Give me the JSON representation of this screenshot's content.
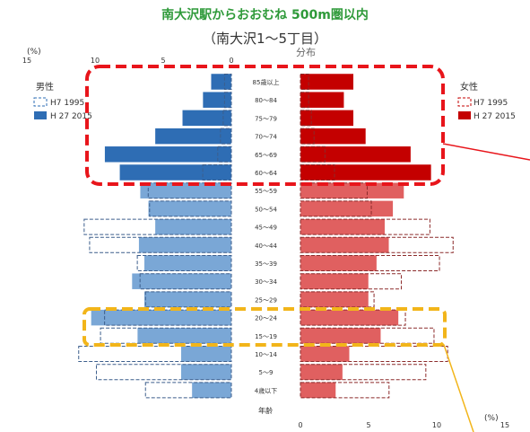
{
  "title": "南大沢駅からおおむね 500m圏以内",
  "subtitle": "（南大沢1～5丁目）",
  "subnote": "分布",
  "axis": {
    "unit_left": "(%)",
    "unit_right": "(%)",
    "ticks_left": [
      "15",
      "10",
      "5",
      "0"
    ],
    "ticks_right": [
      "0",
      "5",
      "10",
      "15"
    ],
    "age_axis_label": "年齢"
  },
  "legend": {
    "male_title": "男性",
    "male_1995": "H7 1995",
    "male_2015": "H 27 2015",
    "female_title": "女性",
    "female_1995": "H7 1995",
    "female_2015": "H 27 2015"
  },
  "colors": {
    "male_dark": "#2e6db4",
    "male_light": "#7aa7d6",
    "female_dark": "#c40000",
    "female_light": "#e06060",
    "highlight_red": "#e8151b",
    "highlight_yellow": "#f2b51a",
    "title_green": "#2f9a3a"
  },
  "chart_data": {
    "type": "bar",
    "orientation": "horizontal",
    "layout": "population-pyramid",
    "xlim": [
      0,
      15
    ],
    "categories": [
      "85歳以上",
      "80～84",
      "75～79",
      "70～74",
      "65～69",
      "60～64",
      "55～59",
      "50～54",
      "45～49",
      "40～44",
      "35～39",
      "30～34",
      "25～29",
      "20～24",
      "15～19",
      "10～14",
      "5～9",
      "4歳以下"
    ],
    "series": [
      {
        "name": "男性 H7 1995",
        "side": "left",
        "style": "outline",
        "values": [
          0.5,
          0.5,
          0.6,
          0.8,
          1.0,
          2.1,
          6.1,
          6.0,
          10.8,
          10.4,
          6.9,
          6.7,
          6.3,
          9.3,
          9.6,
          11.2,
          9.9,
          6.3
        ]
      },
      {
        "name": "男性 H27 2015",
        "side": "left",
        "style": "fill",
        "values": [
          1.5,
          2.1,
          3.6,
          5.6,
          9.3,
          8.2,
          6.7,
          6.1,
          5.6,
          6.8,
          6.4,
          7.3,
          6.4,
          10.3,
          6.9,
          3.7,
          3.7,
          2.9
        ]
      },
      {
        "name": "女性 H7 1995",
        "side": "right",
        "style": "outline",
        "values": [
          0.6,
          0.6,
          0.8,
          1.0,
          1.8,
          2.5,
          4.9,
          5.2,
          9.5,
          11.2,
          10.2,
          7.4,
          5.4,
          7.7,
          9.8,
          10.8,
          9.2,
          6.5
        ]
      },
      {
        "name": "女性 H27 2015",
        "side": "right",
        "style": "fill",
        "values": [
          3.9,
          3.2,
          3.9,
          4.8,
          8.1,
          9.6,
          7.6,
          6.8,
          6.2,
          6.5,
          5.6,
          5.0,
          5.0,
          7.2,
          5.9,
          3.6,
          3.1,
          2.6
        ]
      }
    ]
  }
}
